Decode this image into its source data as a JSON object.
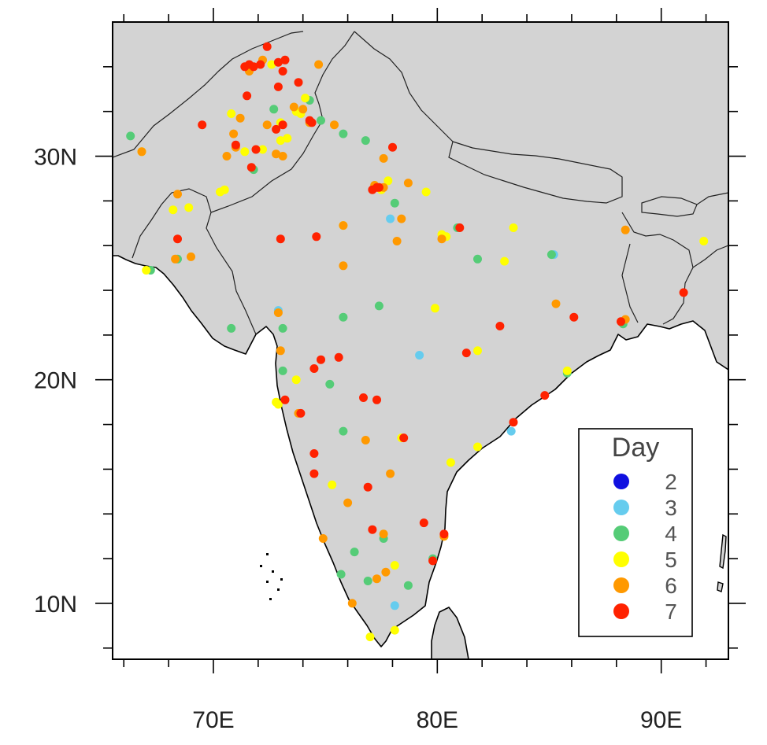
{
  "map": {
    "lon_range": [
      65.5,
      93.0
    ],
    "lat_range": [
      7.5,
      36.0
    ],
    "land_color": "#d3d3d3",
    "ocean_color": "#ffffff",
    "x_tick_labels": [
      {
        "lon": 70,
        "label": "70E"
      },
      {
        "lon": 80,
        "label": "80E"
      },
      {
        "lon": 90,
        "label": "90E"
      }
    ],
    "y_tick_labels": [
      {
        "lat": 30,
        "label": "30N"
      },
      {
        "lat": 20,
        "label": "20N"
      },
      {
        "lat": 10,
        "label": "10N"
      }
    ]
  },
  "legend": {
    "title": "Day",
    "entries": [
      {
        "label": "2",
        "color": "#1010e0"
      },
      {
        "label": "3",
        "color": "#66ccee"
      },
      {
        "label": "4",
        "color": "#55cc77"
      },
      {
        "label": "5",
        "color": "#ffff00"
      },
      {
        "label": "6",
        "color": "#ff9900"
      },
      {
        "label": "7",
        "color": "#ff2200"
      }
    ]
  },
  "chart_data": {
    "type": "scatter",
    "x_unit": "longitude (degrees E)",
    "y_unit": "latitude (degrees N)",
    "series": [
      {
        "label": "3",
        "color": "#66ccee",
        "points": [
          [
            77.9,
            27.2
          ],
          [
            79.2,
            21.1
          ],
          [
            83.3,
            17.7
          ],
          [
            78.1,
            9.9
          ],
          [
            72.9,
            23.1
          ],
          [
            85.2,
            25.6
          ]
        ]
      },
      {
        "label": "4",
        "color": "#55cc77",
        "points": [
          [
            66.3,
            30.9
          ],
          [
            67.2,
            24.9
          ],
          [
            68.4,
            25.4
          ],
          [
            70.8,
            22.3
          ],
          [
            73.1,
            22.3
          ],
          [
            73.1,
            20.4
          ],
          [
            75.2,
            19.8
          ],
          [
            75.8,
            17.7
          ],
          [
            75.8,
            22.8
          ],
          [
            77.4,
            23.3
          ],
          [
            74.8,
            31.6
          ],
          [
            75.8,
            31.0
          ],
          [
            76.8,
            30.7
          ],
          [
            78.1,
            27.9
          ],
          [
            81.8,
            25.4
          ],
          [
            85.1,
            25.6
          ],
          [
            85.8,
            20.3
          ],
          [
            88.3,
            22.5
          ],
          [
            76.3,
            12.3
          ],
          [
            77.6,
            12.9
          ],
          [
            78.7,
            10.8
          ],
          [
            79.8,
            12.0
          ],
          [
            75.7,
            11.3
          ],
          [
            76.9,
            11.0
          ],
          [
            71.8,
            29.4
          ],
          [
            72.7,
            32.1
          ],
          [
            74.3,
            32.5
          ],
          [
            80.9,
            26.8
          ]
        ]
      },
      {
        "label": "5",
        "color": "#ffff00",
        "points": [
          [
            66.8,
            30.2
          ],
          [
            67.0,
            24.9
          ],
          [
            68.2,
            27.6
          ],
          [
            68.9,
            27.7
          ],
          [
            70.3,
            28.4
          ],
          [
            70.5,
            28.5
          ],
          [
            71.4,
            30.2
          ],
          [
            72.2,
            30.3
          ],
          [
            73.0,
            30.7
          ],
          [
            73.3,
            30.8
          ],
          [
            73.7,
            32.0
          ],
          [
            74.1,
            32.6
          ],
          [
            73.9,
            31.9
          ],
          [
            75.8,
            26.9
          ],
          [
            77.5,
            28.5
          ],
          [
            77.8,
            28.9
          ],
          [
            79.5,
            28.4
          ],
          [
            80.2,
            26.5
          ],
          [
            80.4,
            26.4
          ],
          [
            79.9,
            23.2
          ],
          [
            81.8,
            21.3
          ],
          [
            85.8,
            20.4
          ],
          [
            83.4,
            26.8
          ],
          [
            83.0,
            25.3
          ],
          [
            91.9,
            26.2
          ],
          [
            73.7,
            20.0
          ],
          [
            72.8,
            19.0
          ],
          [
            72.9,
            18.9
          ],
          [
            75.3,
            15.3
          ],
          [
            78.4,
            17.4
          ],
          [
            80.6,
            16.3
          ],
          [
            81.8,
            17.0
          ],
          [
            78.1,
            11.7
          ],
          [
            77.0,
            8.5
          ],
          [
            78.1,
            8.8
          ],
          [
            80.3,
            13.0
          ],
          [
            70.8,
            31.9
          ],
          [
            72.6,
            34.1
          ],
          [
            73.0,
            31.5
          ]
        ]
      },
      {
        "label": "6",
        "color": "#ff9900",
        "points": [
          [
            66.8,
            30.2
          ],
          [
            68.4,
            28.3
          ],
          [
            68.3,
            25.4
          ],
          [
            69.0,
            25.5
          ],
          [
            70.6,
            30.0
          ],
          [
            70.9,
            31.0
          ],
          [
            71.2,
            31.7
          ],
          [
            71.6,
            33.8
          ],
          [
            72.2,
            34.3
          ],
          [
            72.4,
            31.4
          ],
          [
            72.8,
            30.1
          ],
          [
            73.1,
            30.0
          ],
          [
            73.6,
            32.2
          ],
          [
            74.0,
            32.1
          ],
          [
            74.3,
            31.5
          ],
          [
            74.7,
            34.1
          ],
          [
            75.4,
            31.4
          ],
          [
            75.8,
            26.9
          ],
          [
            75.8,
            25.1
          ],
          [
            77.6,
            29.9
          ],
          [
            77.2,
            28.7
          ],
          [
            77.6,
            28.6
          ],
          [
            78.2,
            26.2
          ],
          [
            78.4,
            27.2
          ],
          [
            78.7,
            28.8
          ],
          [
            80.2,
            26.3
          ],
          [
            72.9,
            23.0
          ],
          [
            73.0,
            21.3
          ],
          [
            73.8,
            18.5
          ],
          [
            76.8,
            17.3
          ],
          [
            77.9,
            15.8
          ],
          [
            76.0,
            14.5
          ],
          [
            74.9,
            12.9
          ],
          [
            76.2,
            10.0
          ],
          [
            77.3,
            11.1
          ],
          [
            77.7,
            11.4
          ],
          [
            77.6,
            13.1
          ],
          [
            80.3,
            13.0
          ],
          [
            85.3,
            23.4
          ],
          [
            88.4,
            22.7
          ],
          [
            88.4,
            26.7
          ],
          [
            71.0,
            30.4
          ]
        ]
      },
      {
        "label": "7",
        "color": "#ff2200",
        "points": [
          [
            68.4,
            26.3
          ],
          [
            69.5,
            31.4
          ],
          [
            71.0,
            30.5
          ],
          [
            71.7,
            29.5
          ],
          [
            71.4,
            34.0
          ],
          [
            71.6,
            34.1
          ],
          [
            71.8,
            34.0
          ],
          [
            72.1,
            34.1
          ],
          [
            72.4,
            34.9
          ],
          [
            72.9,
            34.2
          ],
          [
            72.9,
            33.1
          ],
          [
            73.1,
            33.8
          ],
          [
            73.2,
            34.3
          ],
          [
            72.8,
            31.2
          ],
          [
            73.1,
            31.4
          ],
          [
            73.8,
            33.3
          ],
          [
            74.3,
            31.6
          ],
          [
            74.4,
            31.5
          ],
          [
            71.9,
            30.3
          ],
          [
            71.5,
            32.7
          ],
          [
            73.0,
            26.3
          ],
          [
            74.6,
            26.4
          ],
          [
            77.1,
            28.5
          ],
          [
            77.3,
            28.6
          ],
          [
            77.4,
            28.6
          ],
          [
            78.0,
            30.4
          ],
          [
            81.0,
            26.8
          ],
          [
            82.8,
            22.4
          ],
          [
            86.1,
            22.8
          ],
          [
            88.2,
            22.6
          ],
          [
            91.0,
            23.9
          ],
          [
            84.8,
            19.3
          ],
          [
            83.4,
            18.1
          ],
          [
            81.3,
            21.2
          ],
          [
            75.6,
            21.0
          ],
          [
            74.8,
            20.9
          ],
          [
            74.5,
            20.5
          ],
          [
            73.2,
            19.1
          ],
          [
            73.9,
            18.5
          ],
          [
            76.7,
            19.2
          ],
          [
            77.3,
            19.1
          ],
          [
            78.5,
            17.4
          ],
          [
            74.5,
            16.7
          ],
          [
            74.5,
            15.8
          ],
          [
            76.9,
            15.2
          ],
          [
            77.1,
            13.3
          ],
          [
            79.4,
            13.6
          ],
          [
            80.3,
            13.1
          ],
          [
            79.8,
            11.9
          ]
        ]
      }
    ]
  }
}
